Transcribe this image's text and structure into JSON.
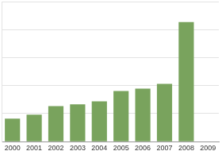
{
  "chart_data": {
    "type": "bar",
    "categories": [
      "2000",
      "2001",
      "2002",
      "2003",
      "2004",
      "2005",
      "2006",
      "2007",
      "2008",
      "2009"
    ],
    "values": [
      0.82,
      0.96,
      1.27,
      1.33,
      1.44,
      1.81,
      1.89,
      2.06,
      4.27,
      null
    ],
    "color": "#79a35d",
    "ylim": [
      0,
      5
    ],
    "yticks": [
      0,
      1,
      2,
      3,
      4,
      5
    ],
    "grid": true,
    "tick_labels": "x"
  }
}
